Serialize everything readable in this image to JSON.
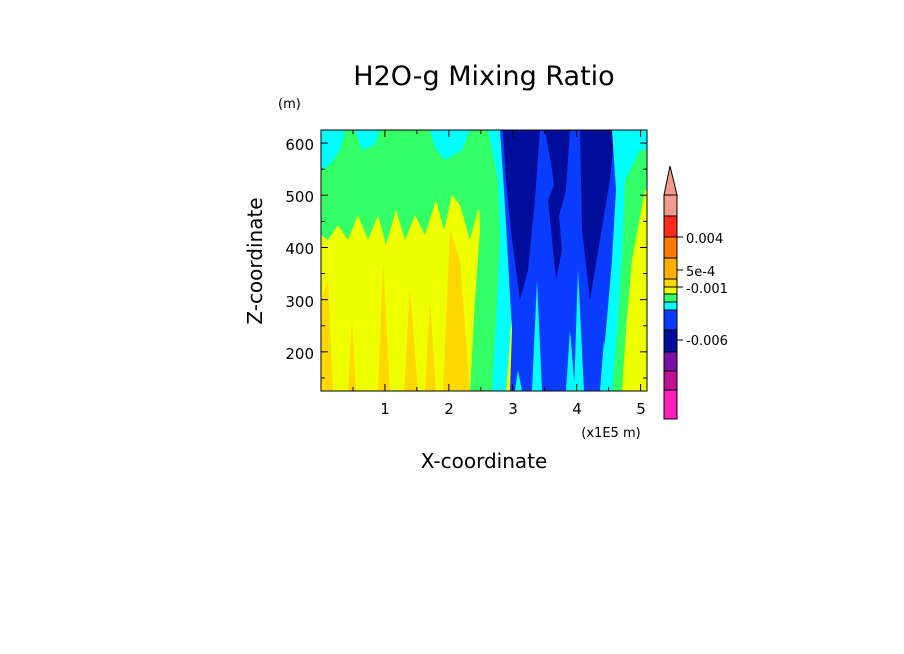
{
  "chart_data": {
    "type": "heatmap",
    "title": "H2O-g Mixing Ratio",
    "xlabel": "X-coordinate",
    "ylabel": "Z-coordinate",
    "x_unit": "(x1E5 m)",
    "y_unit": "(m)",
    "xlim": [
      0.0,
      5.1
    ],
    "ylim": [
      125,
      625
    ],
    "xticks": [
      "1",
      "2",
      "3",
      "4",
      "5"
    ],
    "yticks": [
      "200",
      "300",
      "400",
      "500",
      "600"
    ],
    "colorbar": {
      "labels": [
        "0.004",
        "5e-4",
        "-0.001",
        "-0.006"
      ],
      "levels": [
        "pink",
        "red",
        "orange-red",
        "orange",
        "orange-yellow",
        "yellow",
        "light-green",
        "cyan",
        "blue",
        "dark-blue",
        "purple",
        "magenta-purple",
        "magenta"
      ],
      "colors": [
        "#f29a8e",
        "#ff2a1a",
        "#ff7a00",
        "#ffb000",
        "#ffd800",
        "#eeff00",
        "#33ff66",
        "#00ffff",
        "#0a3cff",
        "#000c9a",
        "#7a10a8",
        "#c0108f",
        "#ff1fbd"
      ]
    },
    "regions": [
      {
        "name": "left upper band",
        "x_range": [
          0.0,
          2.6
        ],
        "z_range": [
          420,
          625
        ],
        "value_color": "#33ff66"
      },
      {
        "name": "left lower band",
        "x_range": [
          0.0,
          2.6
        ],
        "z_range": [
          125,
          460
        ],
        "value_color": "#eeff00"
      },
      {
        "name": "center-right trough",
        "x_range": [
          2.7,
          4.8
        ],
        "z_range": [
          125,
          625
        ],
        "value_color": "#0a3cff"
      },
      {
        "name": "right edge",
        "x_range": [
          4.8,
          5.1
        ],
        "z_range": [
          125,
          625
        ],
        "value_color": "#eeff00"
      }
    ]
  }
}
